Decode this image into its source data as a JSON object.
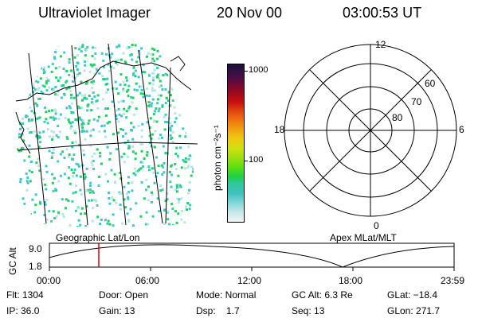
{
  "header": {
    "instrument": "Ultraviolet Imager",
    "date": "20 Nov 00",
    "time": "03:00:53 UT"
  },
  "colorbar": {
    "unit_label": "photon cm⁻²s⁻¹",
    "tick_labels": [
      "1000",
      "100"
    ],
    "colors": [
      "#1a0f3a",
      "#3a1048",
      "#6a0a3a",
      "#9a0a1a",
      "#c81010",
      "#e04010",
      "#f07010",
      "#f0a010",
      "#f0c810",
      "#d0e010",
      "#a0e010",
      "#60e010",
      "#20d040",
      "#30c8a0",
      "#40c0c0",
      "#80d8d8",
      "#c8e8e8",
      "#f0f4f4"
    ]
  },
  "polar_plot": {
    "hour_labels": [
      "12",
      "18",
      "6",
      "0"
    ],
    "lat_labels": [
      "60",
      "70",
      "80"
    ]
  },
  "map_panel": {
    "label": "Geographic Lat/Lon",
    "aurora_color_main": "#20d060",
    "aurora_color_secondary": "#40c8c8"
  },
  "timeline": {
    "axis_title": "GC Alt",
    "y_ticks": [
      "9.0",
      "1.8"
    ],
    "right_label": "Apex MLat/MLT",
    "x_ticks": [
      "00:00",
      "06:00",
      "12:00",
      "18:00",
      "23:59"
    ],
    "marker_time": "03:00"
  },
  "info": {
    "flt": "Flt: 1304",
    "ip": "IP: 36.0",
    "door": "Door: Open",
    "gain": "Gain: 13",
    "mode": "Mode: Normal",
    "dsp": "Dsp:    1.7",
    "gc_alt": "GC Alt: 6.3 Re",
    "seq": "Seq: 13",
    "glat": "GLat: −18.4",
    "glon": "GLon: 271.7"
  }
}
